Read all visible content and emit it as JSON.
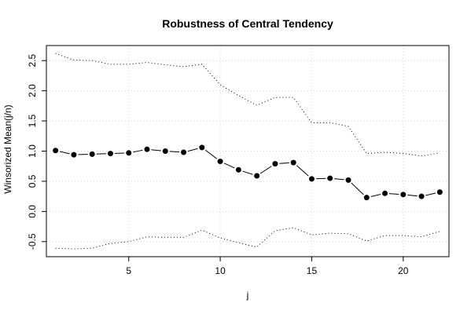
{
  "chart_data": {
    "type": "line",
    "title": "Robustness of Central Tendency",
    "xlabel": "j",
    "ylabel": "Winsorized Mean(j/n)",
    "xlim": [
      0.5,
      22.5
    ],
    "ylim": [
      -0.75,
      2.75
    ],
    "x_ticks": [
      5,
      10,
      15,
      20
    ],
    "y_ticks": [
      -0.5,
      0.0,
      0.5,
      1.0,
      1.5,
      2.0,
      2.5
    ],
    "x_tick_labels": [
      "5",
      "10",
      "15",
      "20"
    ],
    "y_tick_labels": [
      "-0.5",
      "0.0",
      "0.5",
      "1.0",
      "1.5",
      "2.0",
      "2.5"
    ],
    "grid": true,
    "x": [
      1,
      2,
      3,
      4,
      5,
      6,
      7,
      8,
      9,
      10,
      11,
      12,
      13,
      14,
      15,
      16,
      17,
      18,
      19,
      20,
      21,
      22
    ],
    "series": [
      {
        "style": "line-points",
        "values": [
          1.01,
          0.94,
          0.95,
          0.96,
          0.97,
          1.03,
          1.0,
          0.98,
          1.06,
          0.83,
          0.69,
          0.59,
          0.79,
          0.81,
          0.54,
          0.55,
          0.52,
          0.23,
          0.3,
          0.28,
          0.25,
          0.32
        ]
      },
      {
        "style": "dotted",
        "values": [
          2.62,
          2.51,
          2.5,
          2.44,
          2.44,
          2.47,
          2.43,
          2.4,
          2.44,
          2.1,
          1.92,
          1.76,
          1.89,
          1.89,
          1.47,
          1.47,
          1.41,
          0.96,
          0.98,
          0.96,
          0.92,
          0.97
        ]
      },
      {
        "style": "dotted",
        "values": [
          -0.61,
          -0.62,
          -0.61,
          -0.53,
          -0.5,
          -0.42,
          -0.43,
          -0.43,
          -0.31,
          -0.44,
          -0.52,
          -0.59,
          -0.32,
          -0.27,
          -0.39,
          -0.36,
          -0.37,
          -0.49,
          -0.4,
          -0.4,
          -0.42,
          -0.33
        ]
      }
    ]
  }
}
